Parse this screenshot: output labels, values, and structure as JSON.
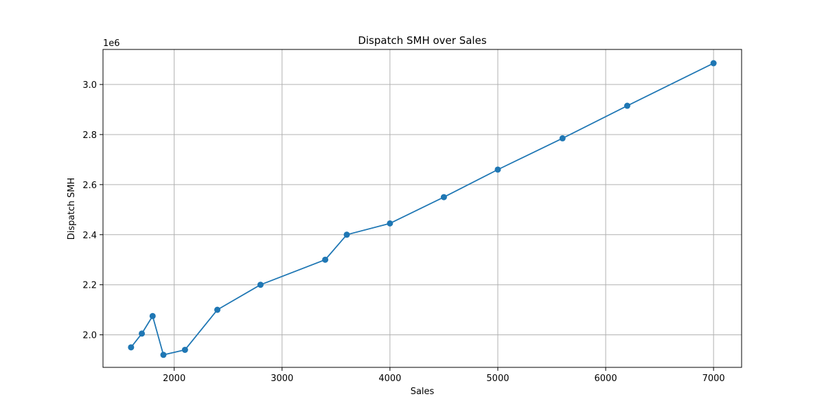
{
  "chart_data": {
    "type": "line",
    "title": "Dispatch SMH over Sales",
    "xlabel": "Sales",
    "ylabel": "Dispatch SMH",
    "y_offset_label": "1e6",
    "y_scale_factor": 1000000,
    "xlim": [
      1340,
      7260
    ],
    "ylim": [
      1870000,
      3140000
    ],
    "xticks": [
      2000,
      3000,
      4000,
      5000,
      6000,
      7000
    ],
    "yticks": [
      2000000,
      2200000,
      2400000,
      2600000,
      2800000,
      3000000
    ],
    "ytick_labels": [
      "2.0",
      "2.2",
      "2.4",
      "2.6",
      "2.8",
      "3.0"
    ],
    "grid": true,
    "series": [
      {
        "color": "#1f77b4",
        "marker": "circle",
        "x": [
          1600,
          1700,
          1800,
          1900,
          2100,
          2400,
          2800,
          3400,
          3600,
          4000,
          4500,
          5000,
          5600,
          6200,
          7000
        ],
        "y": [
          1950000,
          2005000,
          2075000,
          1920000,
          1940000,
          2100000,
          2200000,
          2300000,
          2400000,
          2445000,
          2550000,
          2660000,
          2785000,
          2915000,
          3085000
        ]
      }
    ]
  }
}
